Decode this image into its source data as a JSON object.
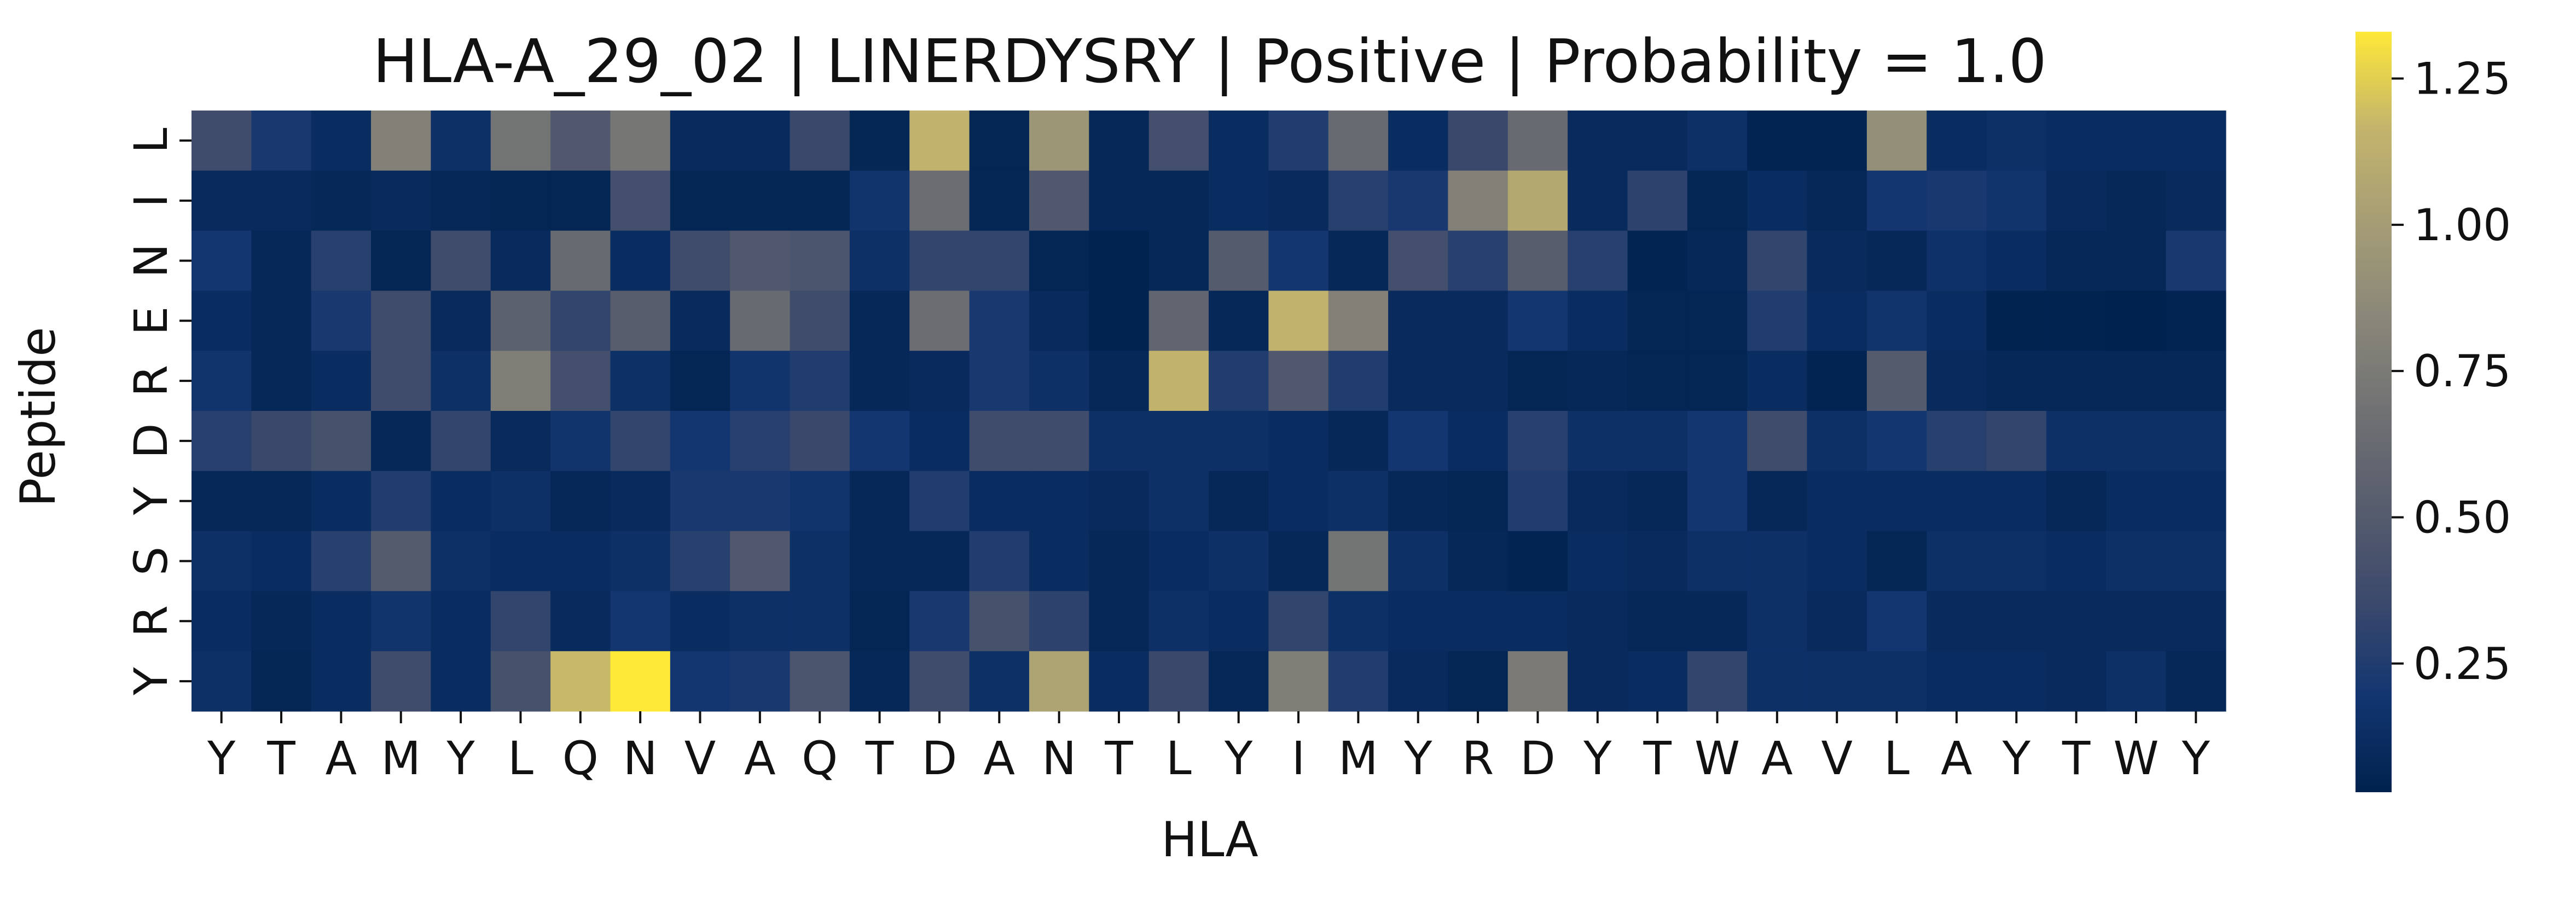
{
  "chart_data": {
    "type": "heatmap",
    "title": "HLA-A_29_02 | LINERDYSRY | Positive | Probability = 1.0",
    "xlabel": "HLA",
    "ylabel": "Peptide",
    "x_labels": [
      "Y",
      "T",
      "A",
      "M",
      "Y",
      "L",
      "Q",
      "N",
      "V",
      "A",
      "Q",
      "T",
      "D",
      "A",
      "N",
      "T",
      "L",
      "Y",
      "I",
      "M",
      "Y",
      "R",
      "D",
      "Y",
      "T",
      "W",
      "A",
      "V",
      "L",
      "A",
      "Y",
      "T",
      "W",
      "Y"
    ],
    "y_labels": [
      "L",
      "I",
      "N",
      "E",
      "R",
      "D",
      "Y",
      "S",
      "R",
      "Y"
    ],
    "colormap": "cividis",
    "color_range": [
      0.03,
      1.33
    ],
    "colorbar_ticks": [
      "0.25",
      "0.50",
      "0.75",
      "1.00",
      "1.25"
    ],
    "colorbar_tick_values": [
      0.25,
      0.5,
      0.75,
      1.0,
      1.25
    ],
    "values": [
      [
        0.38,
        0.22,
        0.12,
        0.8,
        0.15,
        0.7,
        0.48,
        0.72,
        0.1,
        0.1,
        0.35,
        0.07,
        1.15,
        0.06,
        0.95,
        0.08,
        0.4,
        0.12,
        0.25,
        0.62,
        0.12,
        0.35,
        0.62,
        0.1,
        0.1,
        0.15,
        0.05,
        0.05,
        0.9,
        0.12,
        0.15,
        0.12,
        0.12,
        0.12
      ],
      [
        0.1,
        0.1,
        0.08,
        0.1,
        0.08,
        0.06,
        0.06,
        0.4,
        0.06,
        0.07,
        0.07,
        0.18,
        0.65,
        0.07,
        0.48,
        0.08,
        0.08,
        0.12,
        0.1,
        0.28,
        0.22,
        0.8,
        1.08,
        0.1,
        0.3,
        0.06,
        0.12,
        0.08,
        0.2,
        0.22,
        0.18,
        0.1,
        0.08,
        0.1
      ],
      [
        0.2,
        0.08,
        0.28,
        0.06,
        0.38,
        0.1,
        0.62,
        0.12,
        0.38,
        0.48,
        0.45,
        0.15,
        0.32,
        0.32,
        0.06,
        0.04,
        0.08,
        0.5,
        0.2,
        0.08,
        0.4,
        0.28,
        0.52,
        0.28,
        0.05,
        0.08,
        0.32,
        0.1,
        0.08,
        0.16,
        0.12,
        0.08,
        0.08,
        0.22
      ],
      [
        0.12,
        0.08,
        0.22,
        0.38,
        0.1,
        0.55,
        0.32,
        0.52,
        0.1,
        0.62,
        0.38,
        0.08,
        0.65,
        0.22,
        0.1,
        0.04,
        0.58,
        0.08,
        1.15,
        0.8,
        0.1,
        0.1,
        0.2,
        0.12,
        0.06,
        0.06,
        0.25,
        0.12,
        0.18,
        0.12,
        0.04,
        0.04,
        0.03,
        0.05
      ],
      [
        0.18,
        0.08,
        0.12,
        0.38,
        0.15,
        0.78,
        0.4,
        0.15,
        0.06,
        0.18,
        0.25,
        0.08,
        0.1,
        0.22,
        0.15,
        0.08,
        1.15,
        0.25,
        0.48,
        0.25,
        0.1,
        0.1,
        0.06,
        0.08,
        0.06,
        0.06,
        0.12,
        0.05,
        0.5,
        0.1,
        0.08,
        0.08,
        0.08,
        0.08
      ],
      [
        0.28,
        0.35,
        0.42,
        0.08,
        0.32,
        0.1,
        0.18,
        0.32,
        0.2,
        0.28,
        0.35,
        0.2,
        0.12,
        0.38,
        0.38,
        0.15,
        0.15,
        0.15,
        0.12,
        0.08,
        0.2,
        0.12,
        0.28,
        0.15,
        0.15,
        0.2,
        0.38,
        0.15,
        0.2,
        0.28,
        0.32,
        0.15,
        0.15,
        0.15
      ],
      [
        0.08,
        0.08,
        0.12,
        0.25,
        0.12,
        0.15,
        0.08,
        0.1,
        0.22,
        0.22,
        0.18,
        0.08,
        0.25,
        0.12,
        0.12,
        0.1,
        0.15,
        0.08,
        0.12,
        0.15,
        0.08,
        0.06,
        0.25,
        0.1,
        0.08,
        0.2,
        0.08,
        0.12,
        0.12,
        0.12,
        0.12,
        0.08,
        0.12,
        0.12
      ],
      [
        0.15,
        0.12,
        0.28,
        0.5,
        0.15,
        0.12,
        0.12,
        0.15,
        0.28,
        0.48,
        0.15,
        0.08,
        0.08,
        0.25,
        0.12,
        0.08,
        0.12,
        0.15,
        0.08,
        0.7,
        0.15,
        0.08,
        0.05,
        0.12,
        0.1,
        0.15,
        0.15,
        0.12,
        0.06,
        0.15,
        0.15,
        0.12,
        0.15,
        0.15
      ],
      [
        0.12,
        0.08,
        0.12,
        0.18,
        0.12,
        0.32,
        0.1,
        0.2,
        0.12,
        0.15,
        0.15,
        0.06,
        0.22,
        0.42,
        0.3,
        0.08,
        0.15,
        0.12,
        0.32,
        0.15,
        0.12,
        0.12,
        0.12,
        0.1,
        0.08,
        0.08,
        0.15,
        0.1,
        0.2,
        0.1,
        0.1,
        0.1,
        0.1,
        0.1
      ],
      [
        0.15,
        0.06,
        0.12,
        0.38,
        0.12,
        0.42,
        1.18,
        1.33,
        0.2,
        0.22,
        0.45,
        0.08,
        0.38,
        0.15,
        1.05,
        0.12,
        0.35,
        0.08,
        0.78,
        0.25,
        0.1,
        0.06,
        0.75,
        0.1,
        0.12,
        0.32,
        0.15,
        0.15,
        0.15,
        0.12,
        0.12,
        0.1,
        0.15,
        0.08
      ]
    ]
  }
}
